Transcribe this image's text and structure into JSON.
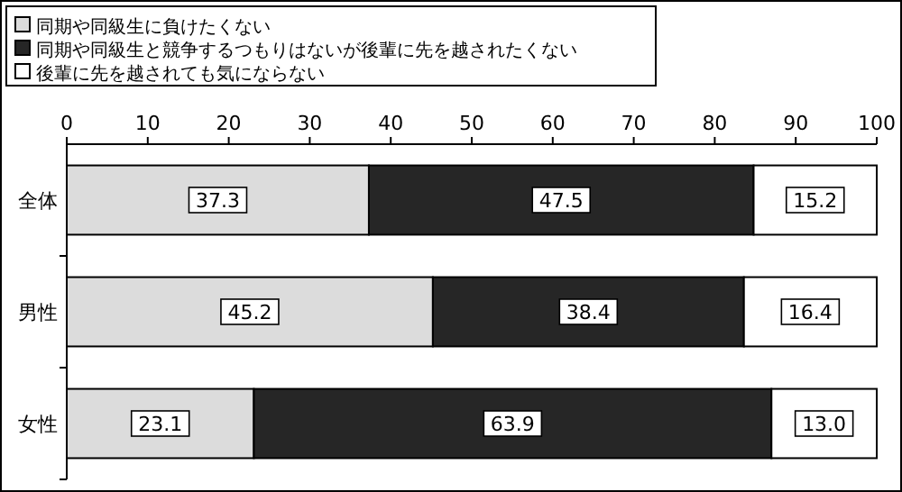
{
  "chart_data": {
    "type": "bar",
    "orientation": "horizontal",
    "stacked": true,
    "legend": "top",
    "categories": [
      "全体",
      "男性",
      "女性"
    ],
    "xlim": [
      0,
      100
    ],
    "xticks": [
      0,
      10,
      20,
      30,
      40,
      50,
      60,
      70,
      80,
      90,
      100
    ],
    "series": [
      {
        "name": "同期や同級生に負けたくない",
        "color": "#dcdcdc",
        "values": [
          37.3,
          45.2,
          23.1
        ],
        "value_labels": [
          "37.3",
          "45.2",
          "23.1"
        ]
      },
      {
        "name": "同期や同級生と競争するつもりはないが後輩に先を越されたくない",
        "color": "#262626",
        "values": [
          47.5,
          38.4,
          63.9
        ],
        "value_labels": [
          "47.5",
          "38.4",
          "63.9"
        ]
      },
      {
        "name": "後輩に先を越されても気にならない",
        "color": "#ffffff",
        "values": [
          15.2,
          16.4,
          13.0
        ],
        "value_labels": [
          "15.2",
          "16.4",
          "13.0"
        ]
      }
    ]
  }
}
